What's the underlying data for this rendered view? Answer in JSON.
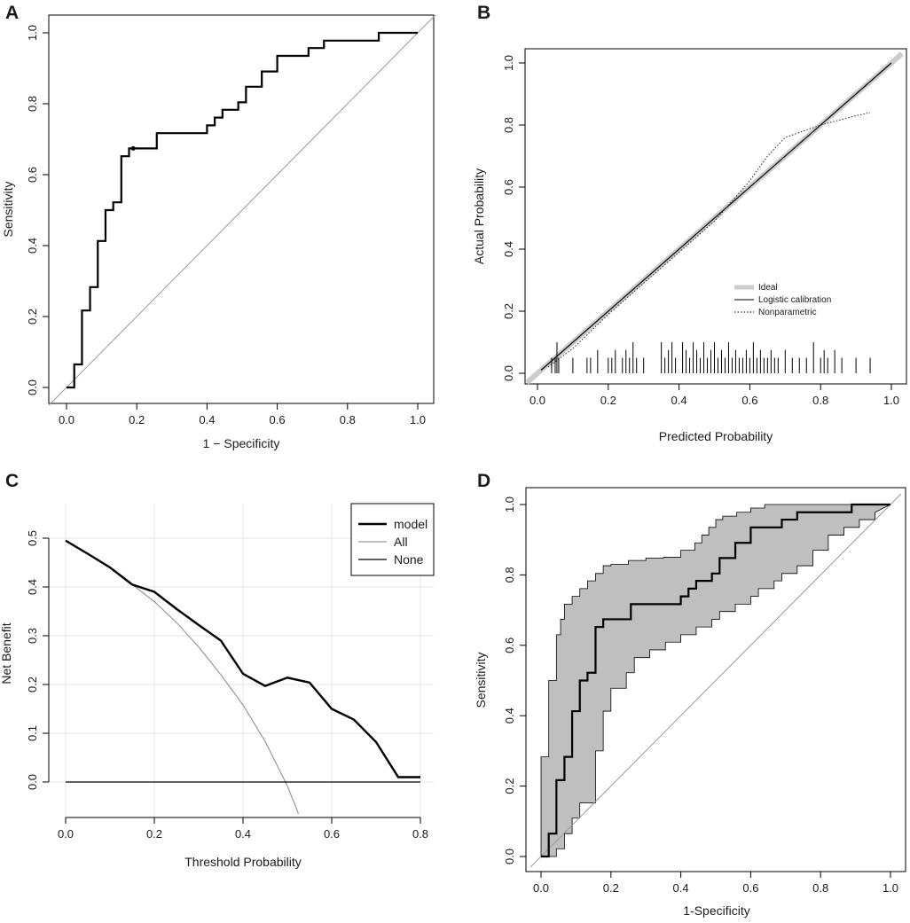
{
  "figure": {
    "panels": [
      "A",
      "B",
      "C",
      "D"
    ]
  },
  "chart_data": [
    {
      "panel": "A",
      "type": "line",
      "title": "",
      "xlabel": "1 − Specificity",
      "ylabel": "Sensitivity",
      "xlim": [
        0,
        1
      ],
      "ylim": [
        0,
        1
      ],
      "xticks": [
        "0.0",
        "0.2",
        "0.4",
        "0.6",
        "0.8",
        "1.0"
      ],
      "yticks": [
        "0.0",
        "0.2",
        "0.4",
        "0.6",
        "0.8",
        "1.0"
      ],
      "series": [
        {
          "name": "ROC",
          "x": [
            0,
            0.022,
            0.022,
            0.044,
            0.044,
            0.067,
            0.067,
            0.089,
            0.089,
            0.111,
            0.111,
            0.133,
            0.133,
            0.156,
            0.156,
            0.178,
            0.178,
            0.2,
            0.2,
            0.257,
            0.257,
            0.4,
            0.4,
            0.422,
            0.422,
            0.444,
            0.444,
            0.489,
            0.489,
            0.511,
            0.511,
            0.556,
            0.556,
            0.6,
            0.6,
            0.689,
            0.689,
            0.733,
            0.733,
            0.889,
            0.889,
            1.0
          ],
          "y": [
            0,
            0,
            0.065,
            0.065,
            0.217,
            0.217,
            0.283,
            0.283,
            0.413,
            0.413,
            0.5,
            0.5,
            0.522,
            0.522,
            0.652,
            0.652,
            0.674,
            0.674,
            0.674,
            0.674,
            0.717,
            0.717,
            0.739,
            0.739,
            0.761,
            0.761,
            0.783,
            0.783,
            0.804,
            0.804,
            0.848,
            0.848,
            0.891,
            0.891,
            0.935,
            0.935,
            0.957,
            0.957,
            0.978,
            0.978,
            1.0,
            1.0
          ]
        }
      ],
      "reference_line": {
        "from": [
          0,
          0
        ],
        "to": [
          1,
          1
        ]
      },
      "point": {
        "x": 0.19,
        "y": 0.674
      }
    },
    {
      "panel": "B",
      "type": "line",
      "title": "",
      "xlabel": "Predicted Probability",
      "ylabel": "Actual Probability",
      "xlim": [
        0,
        1
      ],
      "ylim": [
        0,
        1
      ],
      "xticks": [
        "0.0",
        "0.2",
        "0.4",
        "0.6",
        "0.8",
        "1.0"
      ],
      "yticks": [
        "0.0",
        "0.2",
        "0.4",
        "0.6",
        "0.8",
        "1.0"
      ],
      "legend": [
        "Ideal",
        "Logistic calibration",
        "Nonparametric"
      ],
      "legend_position": "center-right",
      "series": [
        {
          "name": "Ideal",
          "x": [
            -0.03,
            1.03
          ],
          "y": [
            -0.03,
            1.03
          ]
        },
        {
          "name": "Logistic calibration",
          "x": [
            0.01,
            1.0
          ],
          "y": [
            0.01,
            1.0
          ]
        },
        {
          "name": "Nonparametric",
          "x": [
            0.03,
            0.1,
            0.2,
            0.3,
            0.4,
            0.5,
            0.6,
            0.65,
            0.7,
            0.8,
            0.9,
            0.94
          ],
          "y": [
            0.02,
            0.08,
            0.19,
            0.29,
            0.39,
            0.49,
            0.62,
            0.7,
            0.76,
            0.8,
            0.83,
            0.84
          ]
        }
      ],
      "rug": {
        "x": [
          0.04,
          0.05,
          0.055,
          0.06,
          0.1,
          0.14,
          0.15,
          0.17,
          0.2,
          0.21,
          0.22,
          0.24,
          0.25,
          0.26,
          0.27,
          0.28,
          0.3,
          0.35,
          0.36,
          0.37,
          0.38,
          0.39,
          0.41,
          0.42,
          0.43,
          0.44,
          0.45,
          0.46,
          0.47,
          0.48,
          0.49,
          0.5,
          0.51,
          0.52,
          0.53,
          0.54,
          0.55,
          0.56,
          0.57,
          0.58,
          0.59,
          0.6,
          0.61,
          0.62,
          0.63,
          0.64,
          0.65,
          0.66,
          0.67,
          0.68,
          0.7,
          0.72,
          0.74,
          0.76,
          0.78,
          0.8,
          0.81,
          0.82,
          0.84,
          0.86,
          0.9,
          0.94
        ],
        "heights": [
          "s",
          "s",
          "l",
          "s",
          "s",
          "s",
          "s",
          "m",
          "s",
          "s",
          "m",
          "s",
          "m",
          "s",
          "l",
          "s",
          "s",
          "l",
          "s",
          "m",
          "l",
          "s",
          "l",
          "m",
          "s",
          "l",
          "m",
          "s",
          "l",
          "s",
          "m",
          "l",
          "s",
          "m",
          "s",
          "l",
          "s",
          "m",
          "s",
          "s",
          "m",
          "s",
          "l",
          "s",
          "m",
          "s",
          "s",
          "m",
          "s",
          "s",
          "m",
          "s",
          "s",
          "s",
          "l",
          "s",
          "m",
          "s",
          "m",
          "s",
          "s",
          "s"
        ]
      }
    },
    {
      "panel": "C",
      "type": "line",
      "title": "",
      "xlabel": "Threshold Probability",
      "ylabel": "Net Benefit",
      "xlim": [
        0,
        0.8
      ],
      "ylim": [
        -0.07,
        0.55
      ],
      "xticks": [
        "0.0",
        "0.2",
        "0.4",
        "0.6",
        "0.8"
      ],
      "yticks": [
        "0.0",
        "0.1",
        "0.2",
        "0.3",
        "0.4",
        "0.5"
      ],
      "grid": true,
      "legend": [
        "model",
        "All",
        "None"
      ],
      "legend_position": "top-right",
      "series": [
        {
          "name": "model",
          "x": [
            0,
            0.05,
            0.1,
            0.15,
            0.2,
            0.25,
            0.3,
            0.35,
            0.4,
            0.45,
            0.5,
            0.55,
            0.6,
            0.65,
            0.7,
            0.75,
            0.8
          ],
          "y": [
            0.495,
            0.468,
            0.44,
            0.405,
            0.39,
            0.355,
            0.322,
            0.29,
            0.222,
            0.197,
            0.214,
            0.204,
            0.15,
            0.128,
            0.082,
            0.01,
            0.01
          ]
        },
        {
          "name": "All",
          "x": [
            0,
            0.05,
            0.1,
            0.15,
            0.2,
            0.25,
            0.3,
            0.35,
            0.4,
            0.45,
            0.5,
            0.525
          ],
          "y": [
            0.495,
            0.468,
            0.44,
            0.405,
            0.37,
            0.327,
            0.277,
            0.22,
            0.158,
            0.083,
            -0.008,
            -0.065
          ]
        },
        {
          "name": "None",
          "x": [
            0,
            0.8
          ],
          "y": [
            0,
            0
          ]
        }
      ]
    },
    {
      "panel": "D",
      "type": "area",
      "title": "",
      "xlabel": "1-Specificity",
      "ylabel": "Sensitivity",
      "xlim": [
        0,
        1
      ],
      "ylim": [
        0,
        1
      ],
      "xticks": [
        "0.0",
        "0.2",
        "0.4",
        "0.6",
        "0.8",
        "1.0"
      ],
      "yticks": [
        "0.0",
        "0.2",
        "0.4",
        "0.6",
        "0.8",
        "1.0"
      ],
      "series": [
        {
          "name": "ROC",
          "x": [
            0,
            0.022,
            0.022,
            0.044,
            0.044,
            0.067,
            0.067,
            0.089,
            0.089,
            0.111,
            0.111,
            0.133,
            0.133,
            0.156,
            0.156,
            0.178,
            0.178,
            0.2,
            0.2,
            0.257,
            0.257,
            0.4,
            0.4,
            0.422,
            0.422,
            0.444,
            0.444,
            0.489,
            0.489,
            0.511,
            0.511,
            0.556,
            0.556,
            0.6,
            0.6,
            0.689,
            0.689,
            0.733,
            0.733,
            0.889,
            0.889,
            1.0
          ],
          "y": [
            0,
            0,
            0.065,
            0.065,
            0.217,
            0.217,
            0.283,
            0.283,
            0.413,
            0.413,
            0.5,
            0.5,
            0.522,
            0.522,
            0.652,
            0.652,
            0.674,
            0.674,
            0.674,
            0.674,
            0.717,
            0.717,
            0.739,
            0.739,
            0.761,
            0.761,
            0.783,
            0.783,
            0.804,
            0.804,
            0.848,
            0.848,
            0.891,
            0.891,
            0.935,
            0.935,
            0.957,
            0.957,
            0.978,
            0.978,
            1.0,
            1.0
          ]
        },
        {
          "name": "CI upper",
          "x": [
            0,
            0,
            0.022,
            0.022,
            0.044,
            0.044,
            0.056,
            0.056,
            0.067,
            0.067,
            0.089,
            0.089,
            0.111,
            0.111,
            0.133,
            0.133,
            0.156,
            0.156,
            0.178,
            0.178,
            0.2,
            0.2,
            0.25,
            0.25,
            0.3,
            0.3,
            0.35,
            0.35,
            0.4,
            0.4,
            0.44,
            0.44,
            0.46,
            0.46,
            0.48,
            0.48,
            0.5,
            0.5,
            0.52,
            0.52,
            0.56,
            0.56,
            0.6,
            0.6,
            0.64,
            0.64,
            0.7,
            0.7,
            0.8,
            0.8,
            1.0
          ],
          "y": [
            0,
            0.283,
            0.283,
            0.5,
            0.5,
            0.63,
            0.63,
            0.674,
            0.674,
            0.717,
            0.717,
            0.739,
            0.739,
            0.761,
            0.761,
            0.783,
            0.783,
            0.804,
            0.804,
            0.826,
            0.826,
            0.83,
            0.83,
            0.841,
            0.841,
            0.848,
            0.848,
            0.85,
            0.85,
            0.87,
            0.87,
            0.891,
            0.891,
            0.913,
            0.913,
            0.935,
            0.935,
            0.957,
            0.957,
            0.967,
            0.967,
            0.978,
            0.978,
            0.99,
            0.99,
            1.0,
            1.0,
            1.0,
            1.0,
            1.0,
            1.0
          ]
        },
        {
          "name": "CI lower",
          "x": [
            0,
            0.022,
            0.022,
            0.044,
            0.044,
            0.067,
            0.067,
            0.089,
            0.089,
            0.111,
            0.111,
            0.156,
            0.156,
            0.178,
            0.178,
            0.2,
            0.2,
            0.244,
            0.244,
            0.267,
            0.267,
            0.311,
            0.311,
            0.356,
            0.356,
            0.4,
            0.4,
            0.444,
            0.444,
            0.489,
            0.489,
            0.511,
            0.511,
            0.556,
            0.556,
            0.6,
            0.6,
            0.622,
            0.622,
            0.667,
            0.667,
            0.689,
            0.689,
            0.733,
            0.733,
            0.778,
            0.778,
            0.822,
            0.822,
            0.867,
            0.867,
            0.911,
            0.911,
            0.956,
            0.956,
            1.0
          ],
          "y": [
            0,
            0,
            0.0,
            0.0,
            0.022,
            0.022,
            0.065,
            0.065,
            0.109,
            0.109,
            0.152,
            0.152,
            0.3,
            0.3,
            0.413,
            0.413,
            0.478,
            0.478,
            0.522,
            0.522,
            0.565,
            0.565,
            0.587,
            0.587,
            0.609,
            0.609,
            0.63,
            0.63,
            0.652,
            0.652,
            0.674,
            0.674,
            0.696,
            0.696,
            0.717,
            0.717,
            0.739,
            0.739,
            0.761,
            0.761,
            0.783,
            0.783,
            0.804,
            0.804,
            0.826,
            0.826,
            0.87,
            0.87,
            0.913,
            0.913,
            0.935,
            0.935,
            0.957,
            0.957,
            0.978,
            1.0
          ]
        }
      ],
      "reference_line": {
        "from": [
          0,
          0
        ],
        "to": [
          1,
          1
        ]
      }
    }
  ],
  "colors": {
    "line": "#000000",
    "reference": "#999999",
    "ideal": "#cccccc",
    "grid": "#e6e6e6",
    "ci_fill": "#bfbfbf"
  }
}
